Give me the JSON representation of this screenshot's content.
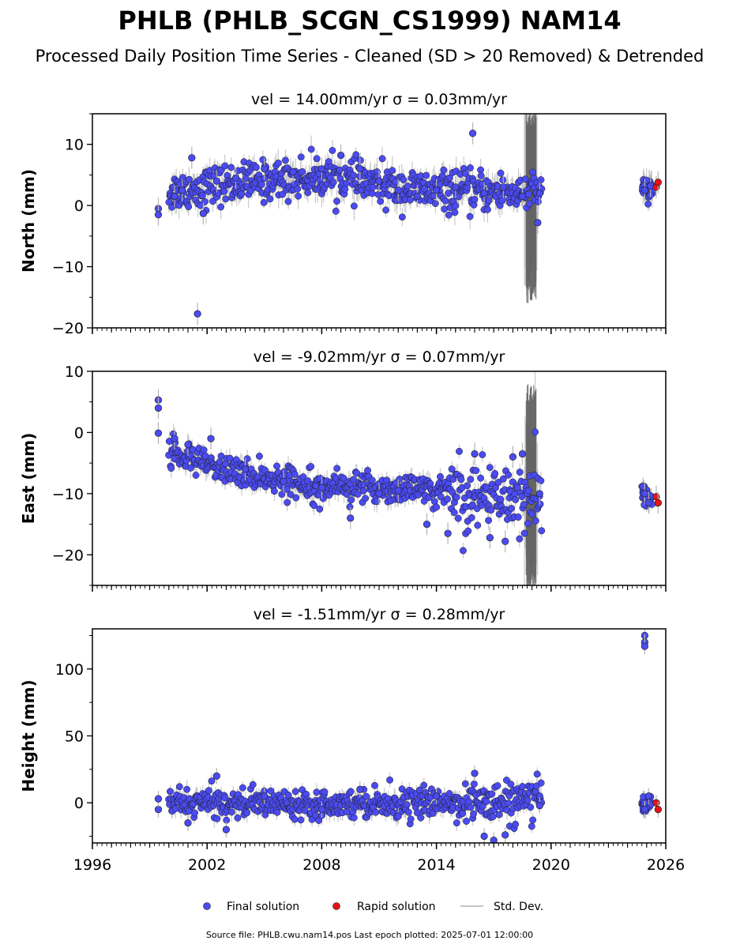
{
  "figure": {
    "title": "PHLB (PHLB_SCGN_CS1999) NAM14",
    "subtitle": "Processed Daily Position Time Series - Cleaned (SD > 20 Removed) & Detrended",
    "source_note": "Source file: PHLB.cwu.nam14.pos  Last epoch plotted: 2025-07-01 12:00:00"
  },
  "legend": {
    "final": "Final solution",
    "rapid": "Rapid solution",
    "stddev": "Std. Dev."
  },
  "colors": {
    "final": "#4b4bf0",
    "rapid": "#e41414",
    "stddev": "#b4b4b4",
    "edge": "#1a1a1a"
  },
  "chart_data": [
    {
      "type": "scatter",
      "title": "vel = 14.00mm/yr   σ = 0.03mm/yr",
      "ylabel": "North (mm)",
      "xlim": [
        1996,
        2026
      ],
      "ylim": [
        -20,
        15
      ],
      "yticks": [
        10,
        0,
        -10,
        -20
      ],
      "xticks": [
        1996,
        2002,
        2008,
        2014,
        2020,
        2026
      ],
      "grid": false,
      "series": [
        {
          "name": "Final solution",
          "points": [
            [
              1999.45,
              -0.5
            ],
            [
              1999.45,
              -1.5
            ],
            [
              2000.3,
              1.5
            ],
            [
              2000.7,
              2.5
            ],
            [
              2001.2,
              7.8
            ],
            [
              2001.5,
              -17.7
            ],
            [
              2001.8,
              -1.3
            ],
            [
              2002.5,
              4
            ],
            [
              2003.5,
              4.5
            ],
            [
              2005,
              6
            ],
            [
              2006.5,
              5.5
            ],
            [
              2008,
              6
            ],
            [
              2009,
              8.2
            ],
            [
              2010,
              6
            ],
            [
              2011,
              4
            ],
            [
              2012,
              2.5
            ],
            [
              2013,
              1.5
            ],
            [
              2014,
              2.5
            ],
            [
              2015,
              3
            ],
            [
              2015.9,
              11.8
            ],
            [
              2016.5,
              2
            ],
            [
              2017.5,
              3
            ],
            [
              2018.5,
              1.5
            ],
            [
              2019.3,
              -2.8
            ],
            [
              2019.4,
              2
            ],
            [
              2024.9,
              2.5
            ],
            [
              2025.2,
              3.2
            ]
          ]
        },
        {
          "name": "Rapid solution",
          "points": [
            [
              2025.5,
              3
            ],
            [
              2025.6,
              3.8
            ]
          ]
        }
      ],
      "trend": [
        [
          2000.0,
          2.2
        ],
        [
          2003.0,
          3.5
        ],
        [
          2006.0,
          4.3
        ],
        [
          2008.5,
          4.8
        ],
        [
          2010.0,
          3.8
        ],
        [
          2012.0,
          2.8
        ],
        [
          2014.0,
          2.3
        ],
        [
          2016.0,
          2.3
        ],
        [
          2018.0,
          2.2
        ],
        [
          2019.5,
          2.0
        ]
      ],
      "scatter_sd": 1.6
    },
    {
      "type": "scatter",
      "title": "vel = -9.02mm/yr   σ = 0.07mm/yr",
      "ylabel": "East (mm)",
      "xlim": [
        1996,
        2026
      ],
      "ylim": [
        -25,
        10
      ],
      "yticks": [
        10,
        0,
        -10,
        -20
      ],
      "xticks": [
        1996,
        2002,
        2008,
        2014,
        2020,
        2026
      ],
      "grid": false,
      "series": [
        {
          "name": "Final solution",
          "points": [
            [
              1999.45,
              5.3
            ],
            [
              1999.45,
              4
            ],
            [
              1999.45,
              -0.1
            ],
            [
              2000.3,
              -1
            ],
            [
              2001,
              -2
            ],
            [
              2002.2,
              -1
            ],
            [
              2004,
              -6
            ],
            [
              2006,
              -8
            ],
            [
              2008,
              -9
            ],
            [
              2009.5,
              -14
            ],
            [
              2011,
              -10
            ],
            [
              2012,
              -9.5
            ],
            [
              2013.5,
              -15
            ],
            [
              2014.6,
              -16.5
            ],
            [
              2016,
              -3.5
            ],
            [
              2016.8,
              -17.2
            ],
            [
              2017.6,
              -17.8
            ],
            [
              2018,
              -4
            ],
            [
              2018.5,
              -3.5
            ],
            [
              2019.4,
              -10
            ],
            [
              2024.9,
              -10
            ],
            [
              2025.1,
              -11.5
            ]
          ]
        },
        {
          "name": "Rapid solution",
          "points": [
            [
              2025.5,
              -10.5
            ],
            [
              2025.6,
              -11.5
            ]
          ]
        }
      ],
      "trend": [
        [
          2000.0,
          -3.0
        ],
        [
          2001.0,
          -4.3
        ],
        [
          2002.5,
          -5.8
        ],
        [
          2004.0,
          -6.8
        ],
        [
          2006.0,
          -7.9
        ],
        [
          2008.0,
          -8.5
        ],
        [
          2010.0,
          -9.0
        ],
        [
          2012.0,
          -9.2
        ],
        [
          2014.0,
          -9.6
        ],
        [
          2016.0,
          -10.2
        ],
        [
          2018.0,
          -10.2
        ],
        [
          2019.5,
          -10.0
        ]
      ],
      "scatter_sd": 1.2
    },
    {
      "type": "scatter",
      "title": "vel = -1.51mm/yr   σ = 0.28mm/yr",
      "ylabel": "Height (mm)",
      "xlim": [
        1996,
        2026
      ],
      "ylim": [
        -30,
        130
      ],
      "yticks": [
        100,
        50,
        0
      ],
      "xticks": [
        1996,
        2002,
        2008,
        2014,
        2020,
        2026
      ],
      "grid": false,
      "series": [
        {
          "name": "Final solution",
          "points": [
            [
              1999.45,
              -5
            ],
            [
              1999.45,
              3
            ],
            [
              2001,
              -15
            ],
            [
              2002.5,
              20
            ],
            [
              2003,
              -20
            ],
            [
              2005,
              5
            ],
            [
              2008,
              -5
            ],
            [
              2010,
              10
            ],
            [
              2012,
              -10
            ],
            [
              2014,
              5
            ],
            [
              2016,
              22
            ],
            [
              2016.5,
              -25
            ],
            [
              2017,
              -28
            ],
            [
              2017.6,
              -24
            ],
            [
              2019.4,
              5
            ],
            [
              2019.4,
              -2
            ],
            [
              2024.9,
              125
            ],
            [
              2024.9,
              120
            ],
            [
              2024.9,
              117
            ],
            [
              2024.9,
              -5
            ],
            [
              2025.1,
              5
            ]
          ]
        },
        {
          "name": "Rapid solution",
          "points": [
            [
              2025.5,
              0
            ],
            [
              2025.6,
              -5
            ]
          ]
        }
      ],
      "trend": [
        [
          2000.0,
          0
        ],
        [
          2004.0,
          0
        ],
        [
          2008.0,
          0
        ],
        [
          2012.0,
          0
        ],
        [
          2016.0,
          0
        ],
        [
          2019.5,
          0
        ]
      ],
      "scatter_sd": 5
    }
  ]
}
